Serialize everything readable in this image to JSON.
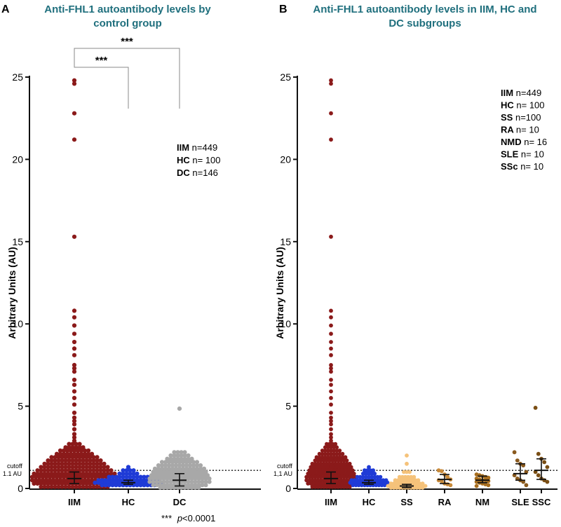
{
  "figure": {
    "footnote_stars": "***",
    "footnote_p": "p",
    "footnote_rest": "<0.0001"
  },
  "chart_data": [
    {
      "type": "scatter",
      "panel": "A",
      "title_lines": [
        "Anti-FHL1 autoantibody levels by",
        "control group"
      ],
      "xlabel": "",
      "ylabel": "Arbitrary Units (AU)",
      "ylim": [
        0,
        25
      ],
      "yticks": [
        0,
        5,
        10,
        15,
        20,
        25
      ],
      "cutoff": {
        "value": 1.1,
        "label_line1": "cutoff",
        "label_line2": "1.1 AU"
      },
      "categories": [
        "IIM",
        "HC",
        "DC"
      ],
      "legend": [
        {
          "key": "IIM",
          "value": "n=449"
        },
        {
          "key": "HC",
          "value": "n= 100"
        },
        {
          "key": "DC",
          "value": "n=146"
        }
      ],
      "significance": [
        {
          "from": "IIM",
          "to": "HC",
          "label": "***"
        },
        {
          "from": "IIM",
          "to": "DC",
          "label": "***"
        }
      ],
      "series": [
        {
          "name": "IIM",
          "color": "#8b1a1a",
          "median": 0.6,
          "q1": 0.3,
          "q3": 1.0,
          "outliers": [
            24.8,
            24.6,
            22.8,
            21.2,
            15.3,
            10.8,
            10.4,
            9.9,
            9.4,
            8.9,
            8.5,
            8.1,
            7.5,
            7.3,
            7.1,
            6.6,
            6.3,
            5.9,
            5.5,
            5.1,
            4.6,
            4.3,
            4.1,
            3.9,
            3.6,
            3.3,
            3.1,
            2.9
          ],
          "bulk": [
            [
              2.7,
              4
            ],
            [
              2.5,
              6
            ],
            [
              2.3,
              9
            ],
            [
              2.1,
              11
            ],
            [
              1.9,
              14
            ],
            [
              1.7,
              16
            ],
            [
              1.5,
              18
            ],
            [
              1.3,
              20
            ],
            [
              1.1,
              22
            ],
            [
              0.9,
              24
            ],
            [
              0.7,
              25
            ],
            [
              0.5,
              25
            ],
            [
              0.3,
              24
            ],
            [
              0.1,
              20
            ]
          ]
        },
        {
          "name": "HC",
          "color": "#1f3bd6",
          "median": 0.35,
          "q1": 0.25,
          "q3": 0.5,
          "outliers": [
            1.3
          ],
          "bulk": [
            [
              1.1,
              4
            ],
            [
              0.9,
              6
            ],
            [
              0.7,
              12
            ],
            [
              0.5,
              18
            ],
            [
              0.35,
              20
            ],
            [
              0.2,
              16
            ]
          ]
        },
        {
          "name": "DC",
          "color": "#a8a8a8",
          "median": 0.5,
          "q1": 0.15,
          "q3": 0.9,
          "outliers": [
            4.85
          ],
          "bulk": [
            [
              2.2,
              4
            ],
            [
              2.0,
              6
            ],
            [
              1.8,
              8
            ],
            [
              1.6,
              11
            ],
            [
              1.4,
              13
            ],
            [
              1.2,
              15
            ],
            [
              1.0,
              16
            ],
            [
              0.8,
              17
            ],
            [
              0.6,
              18
            ],
            [
              0.4,
              18
            ],
            [
              0.2,
              16
            ],
            [
              0.05,
              12
            ]
          ]
        }
      ]
    },
    {
      "type": "scatter",
      "panel": "B",
      "title_lines": [
        "Anti-FHL1 autoantibody levels in IIM, HC and",
        "DC subgroups"
      ],
      "xlabel": "",
      "ylabel": "Arbitrary Units (AU)",
      "ylim": [
        0,
        25
      ],
      "yticks": [
        0,
        5,
        10,
        15,
        20,
        25
      ],
      "cutoff": {
        "value": 1.1,
        "label_line1": "cutoff",
        "label_line2": "1,1 AU"
      },
      "categories": [
        "IIM",
        "HC",
        "SS",
        "RA",
        "NM",
        "SLE",
        "SSC"
      ],
      "legend": [
        {
          "key": "IIM",
          "value": "n=449"
        },
        {
          "key": "HC",
          "value": "n= 100"
        },
        {
          "key": "SS",
          "value": "n=100"
        },
        {
          "key": "RA",
          "value": "n= 10"
        },
        {
          "key": "NMD",
          "value": "n= 16"
        },
        {
          "key": "SLE",
          "value": "n= 10"
        },
        {
          "key": "SSc",
          "value": "n= 10"
        }
      ],
      "series": [
        {
          "name": "IIM",
          "color": "#8b1a1a",
          "median": 0.6,
          "q1": 0.3,
          "q3": 1.0,
          "outliers": [
            24.8,
            24.6,
            22.8,
            21.2,
            15.3,
            10.8,
            10.4,
            9.9,
            9.4,
            8.9,
            8.5,
            8.1,
            7.5,
            7.3,
            7.1,
            6.6,
            6.3,
            5.9,
            5.5,
            5.1,
            4.6,
            4.3,
            4.1,
            3.9,
            3.6,
            3.3,
            3.1,
            2.9
          ],
          "bulk": [
            [
              2.7,
              4
            ],
            [
              2.5,
              5
            ],
            [
              2.3,
              7
            ],
            [
              2.1,
              9
            ],
            [
              1.9,
              11
            ],
            [
              1.7,
              12
            ],
            [
              1.5,
              14
            ],
            [
              1.3,
              15
            ],
            [
              1.1,
              16
            ],
            [
              0.9,
              17
            ],
            [
              0.7,
              18
            ],
            [
              0.5,
              18
            ],
            [
              0.3,
              17
            ],
            [
              0.1,
              14
            ]
          ]
        },
        {
          "name": "HC",
          "color": "#1f3bd6",
          "median": 0.35,
          "q1": 0.25,
          "q3": 0.5,
          "outliers": [
            1.3
          ],
          "bulk": [
            [
              1.1,
              4
            ],
            [
              0.9,
              5
            ],
            [
              0.7,
              9
            ],
            [
              0.5,
              13
            ],
            [
              0.35,
              14
            ],
            [
              0.2,
              12
            ]
          ]
        },
        {
          "name": "SS",
          "color": "#f5c27a",
          "median": 0.15,
          "q1": 0.05,
          "q3": 0.25,
          "outliers": [
            2.0,
            1.5
          ],
          "bulk": [
            [
              1.0,
              3
            ],
            [
              0.7,
              6
            ],
            [
              0.5,
              9
            ],
            [
              0.3,
              12
            ],
            [
              0.15,
              14
            ],
            [
              0.05,
              12
            ]
          ]
        },
        {
          "name": "RA",
          "color": "#c88a3a",
          "median": 0.55,
          "q1": 0.3,
          "q3": 0.85,
          "points": [
            1.1,
            1.05,
            0.85,
            0.7,
            0.55,
            0.5,
            0.45,
            0.3,
            0.25,
            0.2
          ]
        },
        {
          "name": "NM",
          "color": "#a86e1e",
          "median": 0.5,
          "q1": 0.35,
          "q3": 0.75,
          "points": [
            0.85,
            0.8,
            0.75,
            0.7,
            0.65,
            0.6,
            0.55,
            0.5,
            0.5,
            0.45,
            0.4,
            0.35,
            0.3,
            0.25,
            0.2,
            0.15
          ]
        },
        {
          "name": "SLE",
          "color": "#8a5a1e",
          "median": 0.9,
          "q1": 0.5,
          "q3": 1.5,
          "points": [
            2.2,
            1.7,
            1.5,
            1.4,
            1.0,
            0.8,
            0.6,
            0.5,
            0.4,
            0.2
          ]
        },
        {
          "name": "SSC",
          "color": "#7a4e14",
          "median": 1.1,
          "q1": 0.55,
          "q3": 1.8,
          "points": [
            4.9,
            2.1,
            1.8,
            1.6,
            1.3,
            1.0,
            0.8,
            0.6,
            0.5,
            0.4
          ]
        }
      ]
    }
  ]
}
